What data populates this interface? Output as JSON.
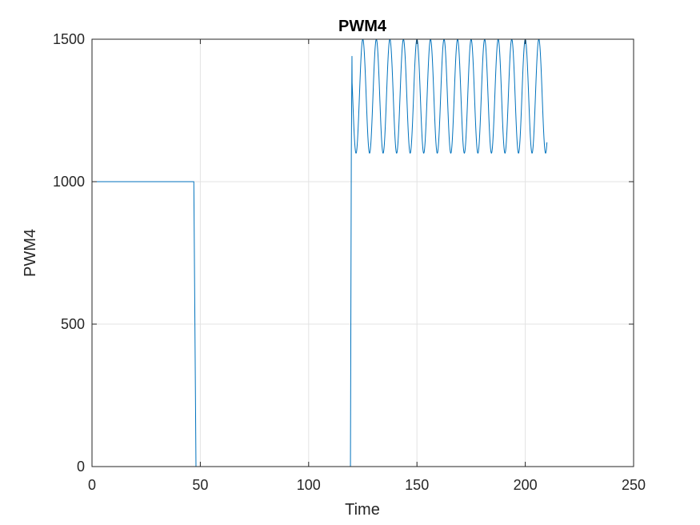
{
  "chart_data": {
    "type": "line",
    "title": "PWM4",
    "xlabel": "Time",
    "ylabel": "PWM4",
    "xlim": [
      0,
      250
    ],
    "ylim": [
      0,
      1500
    ],
    "x_ticks": [
      0,
      50,
      100,
      150,
      200,
      250
    ],
    "y_ticks": [
      0,
      500,
      1000,
      1500
    ],
    "x_tick_labels": [
      "0",
      "50",
      "100",
      "150",
      "200",
      "250"
    ],
    "y_tick_labels": [
      "0",
      "500",
      "1000",
      "1500"
    ],
    "grid": true,
    "legend": "none",
    "series": [
      {
        "color": "#0072BD",
        "segments": [
          {
            "kind": "points",
            "x": [
              0,
              47.0,
              48.0,
              48.3,
              49.0,
              119.0,
              119.3,
              119.7,
              120.0
            ],
            "y": [
              1000,
              1000,
              0,
              0,
              0,
              0,
              0,
              1100,
              1440
            ]
          },
          {
            "kind": "sinusoid",
            "x_start": 120.0,
            "x_end": 210.0,
            "center": 1300,
            "amplitude": 200,
            "period": 6.25,
            "phase_peak_x": 125.0,
            "start_value": 1440
          }
        ]
      }
    ]
  }
}
